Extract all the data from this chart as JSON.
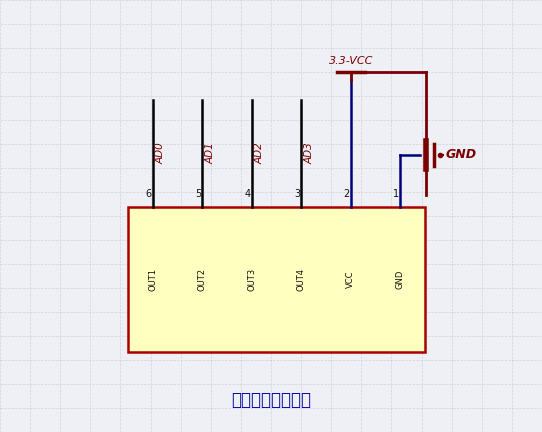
{
  "bg_color": "#eef0f5",
  "grid_color": "#c8ccd8",
  "wire_color_black": "#000000",
  "wire_color_blue": "#00007a",
  "wire_color_dark_red": "#7a0000",
  "box_fill": "#ffffc0",
  "box_edge": "#aa0000",
  "text_color_red": "#7a0000",
  "text_color_blue": "#0000aa",
  "text_color_black": "#111111",
  "title": "四路触摸感应模块",
  "pin_labels_top": [
    "AD0",
    "AD1",
    "AD2",
    "AD3"
  ],
  "pin_numbers": [
    "6",
    "5",
    "4",
    "3",
    "2",
    "1"
  ],
  "pin_labels_box": [
    "OUT1",
    "OUT2",
    "OUT3",
    "OUT4",
    "VCC",
    "GND"
  ],
  "vcc_label": "3.3-VCC",
  "gnd_label": "GND"
}
